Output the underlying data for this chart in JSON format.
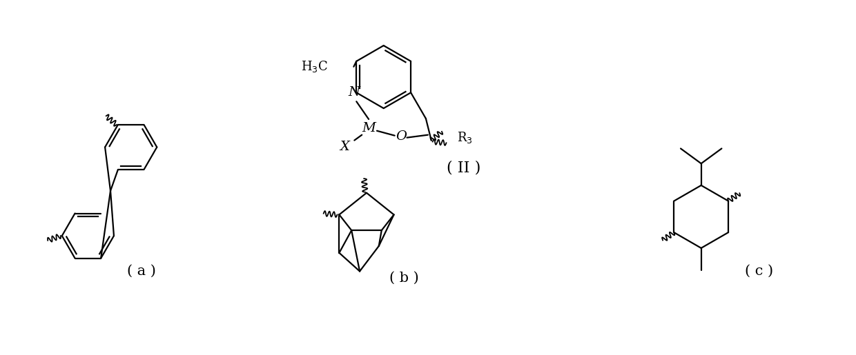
{
  "bg_color": "#ffffff",
  "line_color": "#000000",
  "line_width": 1.6,
  "fig_width": 12.4,
  "fig_height": 5.15,
  "label_a": "( a )",
  "label_b": "( b )",
  "label_c": "( c )",
  "label_II": "( II )",
  "font_size_label": 15,
  "font_size_atom": 13
}
